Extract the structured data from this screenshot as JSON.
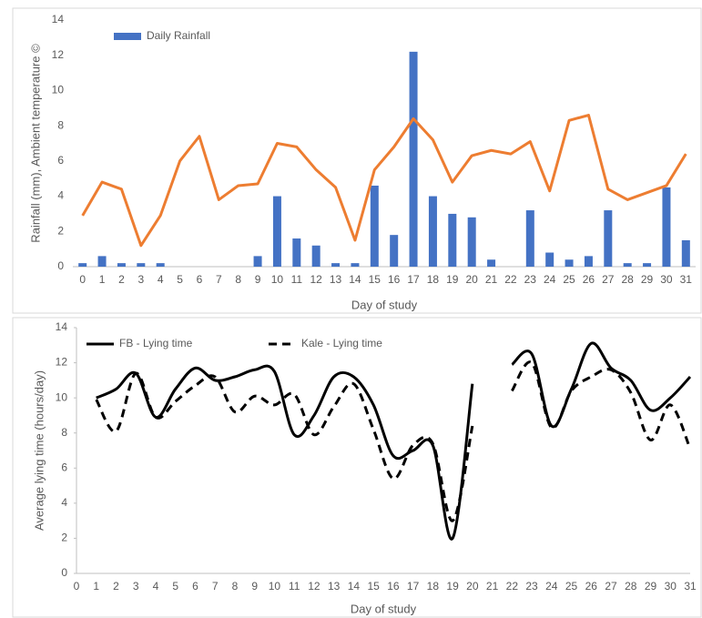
{
  "chart_data": [
    {
      "type": "combo",
      "y_label": "Rainfall (mm), Ambient temperature ©",
      "x_label": "Day of study",
      "categories": [
        0,
        1,
        2,
        3,
        4,
        5,
        6,
        7,
        8,
        9,
        10,
        11,
        12,
        13,
        14,
        15,
        16,
        17,
        18,
        19,
        20,
        21,
        22,
        23,
        24,
        25,
        26,
        27,
        28,
        29,
        30,
        31
      ],
      "series": [
        {
          "name": "Daily Rainfall",
          "type": "bar",
          "color": "#4472c4",
          "values": [
            0.2,
            0.6,
            0.2,
            0.2,
            0.2,
            0,
            0,
            0,
            0,
            0.6,
            4,
            1.6,
            1.2,
            0.2,
            0.2,
            4.6,
            1.8,
            12.2,
            4,
            3,
            2.8,
            0.4,
            0,
            3.2,
            0.8,
            0.4,
            0.6,
            3.2,
            0.2,
            0.2,
            4.5,
            1.5
          ]
        },
        {
          "type": "line",
          "color": "#ed7d31",
          "values": [
            2.9,
            4.8,
            4.4,
            1.2,
            2.9,
            6,
            7.4,
            3.8,
            4.6,
            4.7,
            7,
            6.8,
            5.5,
            4.5,
            1.5,
            5.5,
            6.8,
            8.4,
            7.2,
            4.8,
            6.3,
            6.6,
            6.4,
            7.1,
            4.3,
            8.3,
            8.6,
            4.4,
            3.8,
            4.2,
            4.6,
            6.4
          ]
        }
      ],
      "ylim": [
        0,
        14
      ],
      "yticks": [
        0,
        2,
        4,
        6,
        8,
        10,
        12,
        14
      ],
      "legend": "top-left",
      "grid": false
    },
    {
      "type": "line",
      "y_label": "Average lying time (hours/day)",
      "x_label": "Day of study",
      "categories": [
        0,
        1,
        2,
        3,
        4,
        5,
        6,
        7,
        8,
        9,
        10,
        11,
        12,
        13,
        14,
        15,
        16,
        17,
        18,
        19,
        20,
        21,
        22,
        23,
        24,
        25,
        26,
        27,
        28,
        29,
        30,
        31
      ],
      "series": [
        {
          "name": "FB - Lying time",
          "color": "#000000",
          "line_style": "solid",
          "values": [
            null,
            10,
            10.5,
            11.4,
            8.9,
            10.5,
            11.7,
            11,
            11.2,
            11.6,
            11.5,
            7.9,
            9,
            11.2,
            11.2,
            9.6,
            6.7,
            7,
            7.3,
            2,
            10.8,
            null,
            11.9,
            12.5,
            8.4,
            10.5,
            13.1,
            11.7,
            11,
            9.3,
            10,
            11.2
          ]
        },
        {
          "name": "Kale - Lying time",
          "color": "#000000",
          "line_style": "dashed",
          "values": [
            null,
            9.9,
            8.1,
            11.4,
            8.9,
            9.8,
            10.7,
            11.2,
            9.2,
            10.1,
            9.6,
            10.2,
            7.9,
            9.5,
            10.8,
            8.2,
            5.4,
            7.3,
            7.4,
            3,
            8.4,
            null,
            10.4,
            12,
            8.3,
            10.4,
            11.2,
            11.6,
            10.3,
            7.6,
            9.6,
            7.1
          ]
        }
      ],
      "smooth": true,
      "ylim": [
        0,
        14
      ],
      "yticks": [
        0,
        2,
        4,
        6,
        8,
        10,
        12,
        14
      ],
      "legend": "top-left",
      "grid": false
    }
  ]
}
